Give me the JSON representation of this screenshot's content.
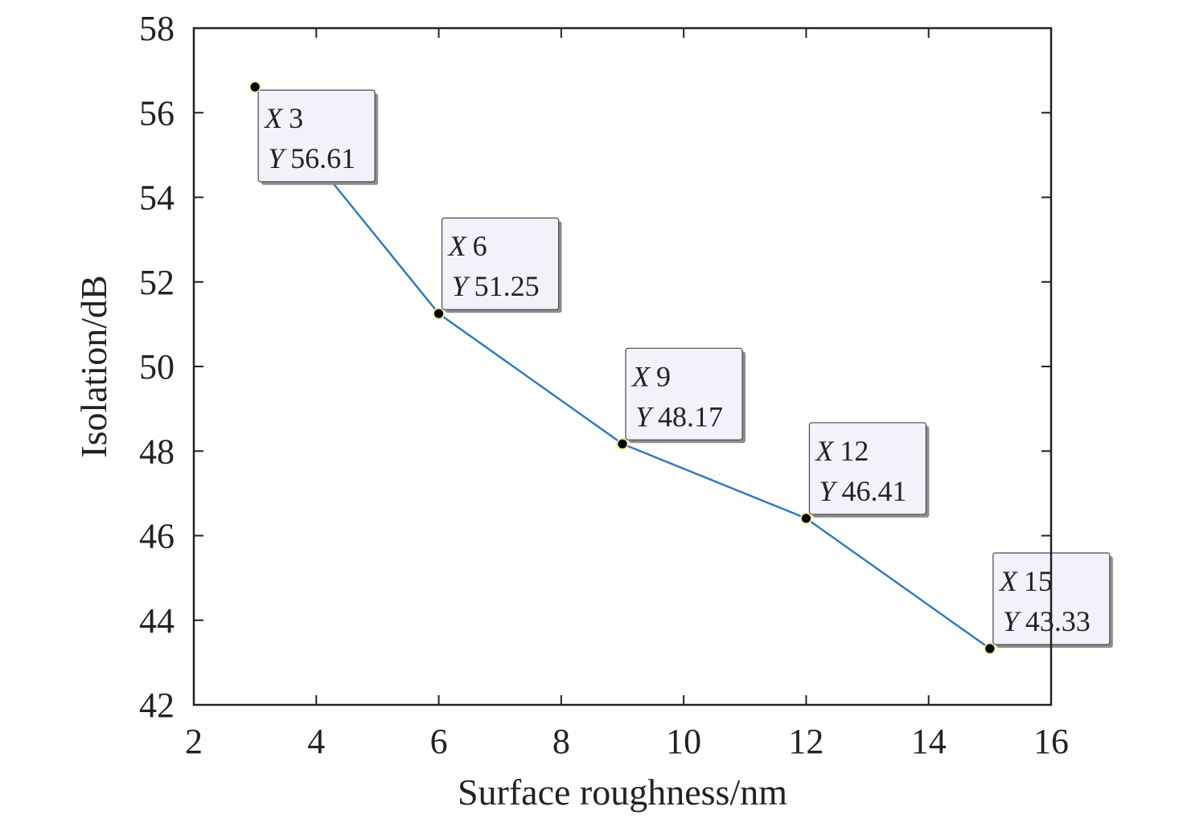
{
  "chart_data": {
    "type": "line",
    "xlabel": "Surface roughness/nm",
    "ylabel": "Isolation/dB",
    "xlim": [
      2,
      16
    ],
    "ylim": [
      42,
      58
    ],
    "xticks": [
      2,
      4,
      6,
      8,
      10,
      12,
      14,
      16
    ],
    "yticks": [
      42,
      44,
      46,
      48,
      50,
      52,
      54,
      56,
      58
    ],
    "grid": false,
    "series": [
      {
        "x": [
          3,
          6,
          9,
          12,
          15
        ],
        "y": [
          56.61,
          51.25,
          48.17,
          46.41,
          43.33
        ],
        "color": "#2b78b6",
        "marker_color": "#000000",
        "marker_ring": "#f2f29a"
      }
    ],
    "datatips": [
      {
        "x_label": "X",
        "x_value": "3",
        "y_label": "Y",
        "y_value": "56.61"
      },
      {
        "x_label": "X",
        "x_value": "6",
        "y_label": "Y",
        "y_value": "51.25"
      },
      {
        "x_label": "X",
        "x_value": "9",
        "y_label": "Y",
        "y_value": "48.17"
      },
      {
        "x_label": "X",
        "x_value": "12",
        "y_label": "Y",
        "y_value": "46.41"
      },
      {
        "x_label": "X",
        "x_value": "15",
        "y_label": "Y",
        "y_value": "43.33"
      }
    ]
  }
}
